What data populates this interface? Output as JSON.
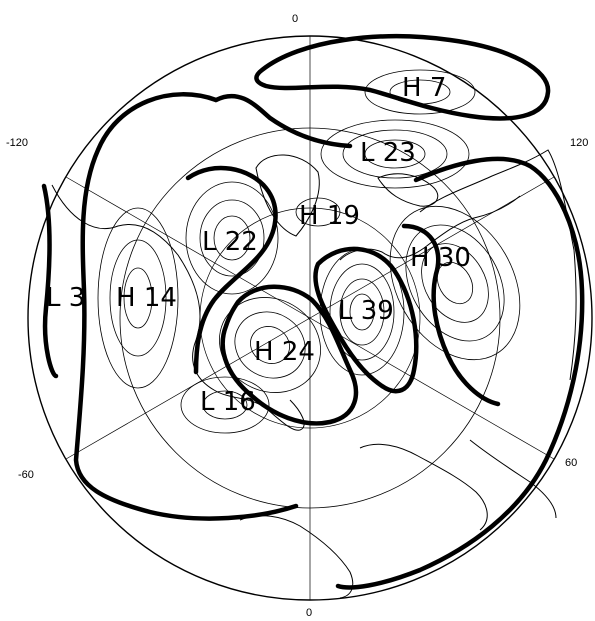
{
  "map": {
    "projection": "polar stereographic",
    "longitude_labels": [
      "0",
      "-120",
      "120",
      "-60",
      "60",
      "0"
    ],
    "centers": [
      {
        "id": "H7",
        "type": "H",
        "value": "7",
        "text": "H 7"
      },
      {
        "id": "L23",
        "type": "L",
        "value": "23",
        "text": "L 23"
      },
      {
        "id": "H19",
        "type": "H",
        "value": "19",
        "text": "H 19"
      },
      {
        "id": "L22",
        "type": "L",
        "value": "22",
        "text": "L 22"
      },
      {
        "id": "H30",
        "type": "H",
        "value": "30",
        "text": "H 30"
      },
      {
        "id": "L3",
        "type": "L",
        "value": "3",
        "text": "L 3"
      },
      {
        "id": "H14",
        "type": "H",
        "value": "14",
        "text": "H 14"
      },
      {
        "id": "L39",
        "type": "L",
        "value": "39",
        "text": "L 39"
      },
      {
        "id": "H24",
        "type": "H",
        "value": "24",
        "text": "H 24"
      },
      {
        "id": "L16",
        "type": "L",
        "value": "16",
        "text": "L 16"
      }
    ]
  }
}
